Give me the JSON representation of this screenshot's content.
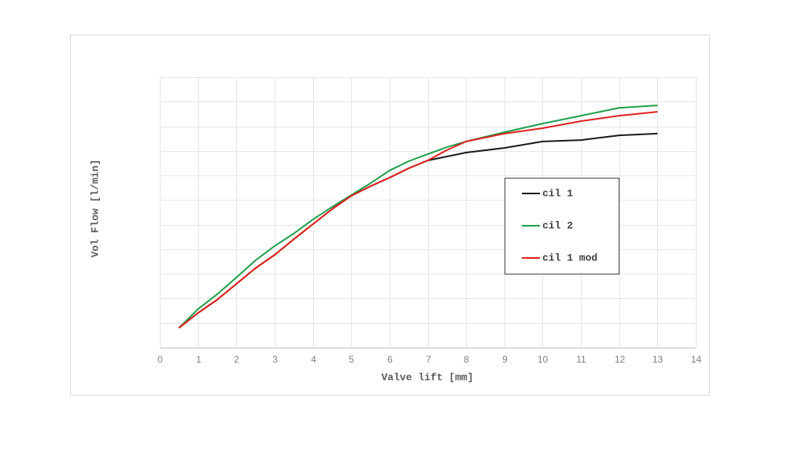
{
  "chart_data": {
    "type": "line",
    "x_label": "Valve lift [mm]",
    "y_label": "Vol Flow [l/min]",
    "x": [
      0.5,
      1,
      1.5,
      2,
      2.5,
      3,
      3.5,
      4,
      4.5,
      5,
      5.5,
      6,
      6.5,
      7,
      7.5,
      8,
      9,
      10,
      11,
      12,
      13
    ],
    "series": [
      {
        "name": "cil 1",
        "color": "#1a1a1a",
        "values": [
          0.8,
          1.41,
          1.95,
          2.59,
          3.23,
          3.77,
          4.41,
          5.02,
          5.63,
          6.17,
          6.56,
          6.91,
          7.29,
          7.61,
          7.77,
          7.93,
          8.12,
          8.38,
          8.44,
          8.63,
          8.7
        ]
      },
      {
        "name": "cil 2",
        "color": "#1e9e4a",
        "values": [
          0.8,
          1.57,
          2.17,
          2.85,
          3.55,
          4.13,
          4.64,
          5.21,
          5.72,
          6.2,
          6.68,
          7.2,
          7.58,
          7.87,
          8.15,
          8.38,
          8.76,
          9.11,
          9.43,
          9.75,
          9.85
        ]
      },
      {
        "name": "cil 1 mod",
        "color": "#e0201b",
        "values": [
          0.8,
          1.41,
          1.95,
          2.59,
          3.23,
          3.77,
          4.41,
          5.02,
          5.63,
          6.17,
          6.56,
          6.91,
          7.29,
          7.61,
          8.03,
          8.38,
          8.7,
          8.92,
          9.21,
          9.43,
          9.59
        ]
      }
    ],
    "xlim": [
      0,
      14
    ],
    "xticks": [
      0,
      1,
      2,
      3,
      4,
      5,
      6,
      7,
      8,
      9,
      10,
      11,
      12,
      13,
      14
    ],
    "ylim": [
      0,
      11
    ],
    "yticks": [
      0,
      1,
      2,
      3,
      4,
      5,
      6,
      7,
      8,
      9,
      10,
      11
    ],
    "show_ytick_labels": false,
    "grid": true,
    "legend": "right"
  }
}
